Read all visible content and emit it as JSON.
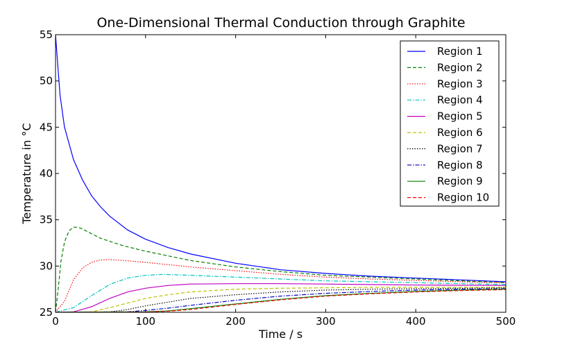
{
  "chart_data": {
    "type": "line",
    "title": "One-Dimensional Thermal Conduction through Graphite",
    "xlabel": "Time / s",
    "ylabel": "Temperature in °C",
    "xlim": [
      0,
      500
    ],
    "ylim": [
      25,
      55
    ],
    "xticks": [
      0,
      100,
      200,
      300,
      400,
      500
    ],
    "yticks": [
      25,
      30,
      35,
      40,
      45,
      50,
      55
    ],
    "grid": false,
    "legend_position": "top-right",
    "series": [
      {
        "name": "Region 1",
        "color": "#0000ff",
        "dash": "solid",
        "points": [
          [
            0,
            55
          ],
          [
            5,
            48.5
          ],
          [
            10,
            45
          ],
          [
            20,
            41.5
          ],
          [
            30,
            39.3
          ],
          [
            40,
            37.6
          ],
          [
            50,
            36.4
          ],
          [
            60,
            35.4
          ],
          [
            80,
            33.9
          ],
          [
            100,
            32.9
          ],
          [
            125,
            32.0
          ],
          [
            150,
            31.3
          ],
          [
            200,
            30.3
          ],
          [
            250,
            29.6
          ],
          [
            300,
            29.2
          ],
          [
            350,
            28.9
          ],
          [
            400,
            28.7
          ],
          [
            450,
            28.5
          ],
          [
            500,
            28.3
          ]
        ]
      },
      {
        "name": "Region 2",
        "color": "#008000",
        "dash": "dashed",
        "points": [
          [
            0,
            25
          ],
          [
            3,
            27.5
          ],
          [
            6,
            30.5
          ],
          [
            10,
            32.6
          ],
          [
            15,
            33.8
          ],
          [
            20,
            34.2
          ],
          [
            25,
            34.2
          ],
          [
            30,
            34.0
          ],
          [
            40,
            33.5
          ],
          [
            50,
            33.0
          ],
          [
            75,
            32.2
          ],
          [
            100,
            31.6
          ],
          [
            150,
            30.6
          ],
          [
            200,
            29.9
          ],
          [
            250,
            29.4
          ],
          [
            300,
            29.0
          ],
          [
            350,
            28.8
          ],
          [
            400,
            28.6
          ],
          [
            450,
            28.4
          ],
          [
            500,
            28.2
          ]
        ]
      },
      {
        "name": "Region 3",
        "color": "#ff0000",
        "dash": "dotted",
        "points": [
          [
            0,
            25
          ],
          [
            10,
            26.2
          ],
          [
            20,
            28.5
          ],
          [
            30,
            29.8
          ],
          [
            40,
            30.4
          ],
          [
            50,
            30.65
          ],
          [
            60,
            30.7
          ],
          [
            75,
            30.6
          ],
          [
            100,
            30.4
          ],
          [
            150,
            29.9
          ],
          [
            200,
            29.5
          ],
          [
            250,
            29.1
          ],
          [
            300,
            28.8
          ],
          [
            350,
            28.6
          ],
          [
            400,
            28.45
          ],
          [
            450,
            28.3
          ],
          [
            500,
            28.2
          ]
        ]
      },
      {
        "name": "Region 4",
        "color": "#00bfbf",
        "dash": "dashdot",
        "points": [
          [
            0,
            25
          ],
          [
            20,
            25.5
          ],
          [
            40,
            26.8
          ],
          [
            60,
            28.0
          ],
          [
            80,
            28.7
          ],
          [
            100,
            29.0
          ],
          [
            120,
            29.1
          ],
          [
            150,
            29.0
          ],
          [
            200,
            28.8
          ],
          [
            250,
            28.6
          ],
          [
            300,
            28.4
          ],
          [
            350,
            28.3
          ],
          [
            400,
            28.2
          ],
          [
            450,
            28.1
          ],
          [
            500,
            28.0
          ]
        ]
      },
      {
        "name": "Region 5",
        "color": "#bf00bf",
        "dash": "solid",
        "points": [
          [
            0,
            25
          ],
          [
            20,
            25.05
          ],
          [
            40,
            25.6
          ],
          [
            60,
            26.5
          ],
          [
            80,
            27.2
          ],
          [
            100,
            27.6
          ],
          [
            125,
            27.9
          ],
          [
            150,
            28.05
          ],
          [
            200,
            28.1
          ],
          [
            250,
            28.1
          ],
          [
            300,
            28.05
          ],
          [
            400,
            27.95
          ],
          [
            500,
            27.9
          ]
        ]
      },
      {
        "name": "Region 6",
        "color": "#bfbf00",
        "dash": "dashed",
        "points": [
          [
            0,
            25
          ],
          [
            40,
            25.05
          ],
          [
            60,
            25.5
          ],
          [
            80,
            26.0
          ],
          [
            100,
            26.5
          ],
          [
            125,
            26.9
          ],
          [
            150,
            27.2
          ],
          [
            200,
            27.5
          ],
          [
            250,
            27.6
          ],
          [
            300,
            27.65
          ],
          [
            350,
            27.7
          ],
          [
            400,
            27.7
          ],
          [
            500,
            27.7
          ]
        ]
      },
      {
        "name": "Region 7",
        "color": "#000000",
        "dash": "dotted",
        "points": [
          [
            0,
            25
          ],
          [
            60,
            25.05
          ],
          [
            80,
            25.3
          ],
          [
            100,
            25.7
          ],
          [
            125,
            26.1
          ],
          [
            150,
            26.5
          ],
          [
            200,
            26.9
          ],
          [
            250,
            27.2
          ],
          [
            300,
            27.4
          ],
          [
            350,
            27.5
          ],
          [
            400,
            27.55
          ],
          [
            500,
            27.65
          ]
        ]
      },
      {
        "name": "Region 8",
        "color": "#0000bf",
        "dash": "dashdot",
        "points": [
          [
            0,
            25
          ],
          [
            80,
            25.05
          ],
          [
            100,
            25.2
          ],
          [
            125,
            25.45
          ],
          [
            150,
            25.75
          ],
          [
            200,
            26.3
          ],
          [
            250,
            26.75
          ],
          [
            300,
            27.05
          ],
          [
            350,
            27.25
          ],
          [
            400,
            27.4
          ],
          [
            450,
            27.5
          ],
          [
            500,
            27.55
          ]
        ]
      },
      {
        "name": "Region 9",
        "color": "#008000",
        "dash": "solid",
        "points": [
          [
            0,
            25
          ],
          [
            100,
            25.05
          ],
          [
            125,
            25.15
          ],
          [
            150,
            25.4
          ],
          [
            200,
            25.9
          ],
          [
            250,
            26.4
          ],
          [
            300,
            26.8
          ],
          [
            350,
            27.05
          ],
          [
            400,
            27.25
          ],
          [
            450,
            27.4
          ],
          [
            500,
            27.5
          ]
        ]
      },
      {
        "name": "Region 10",
        "color": "#ff0000",
        "dash": "dashed",
        "points": [
          [
            0,
            25
          ],
          [
            100,
            25.02
          ],
          [
            125,
            25.12
          ],
          [
            150,
            25.3
          ],
          [
            200,
            25.85
          ],
          [
            250,
            26.35
          ],
          [
            300,
            26.75
          ],
          [
            350,
            27.0
          ],
          [
            400,
            27.2
          ],
          [
            450,
            27.35
          ],
          [
            500,
            27.45
          ]
        ]
      }
    ]
  }
}
